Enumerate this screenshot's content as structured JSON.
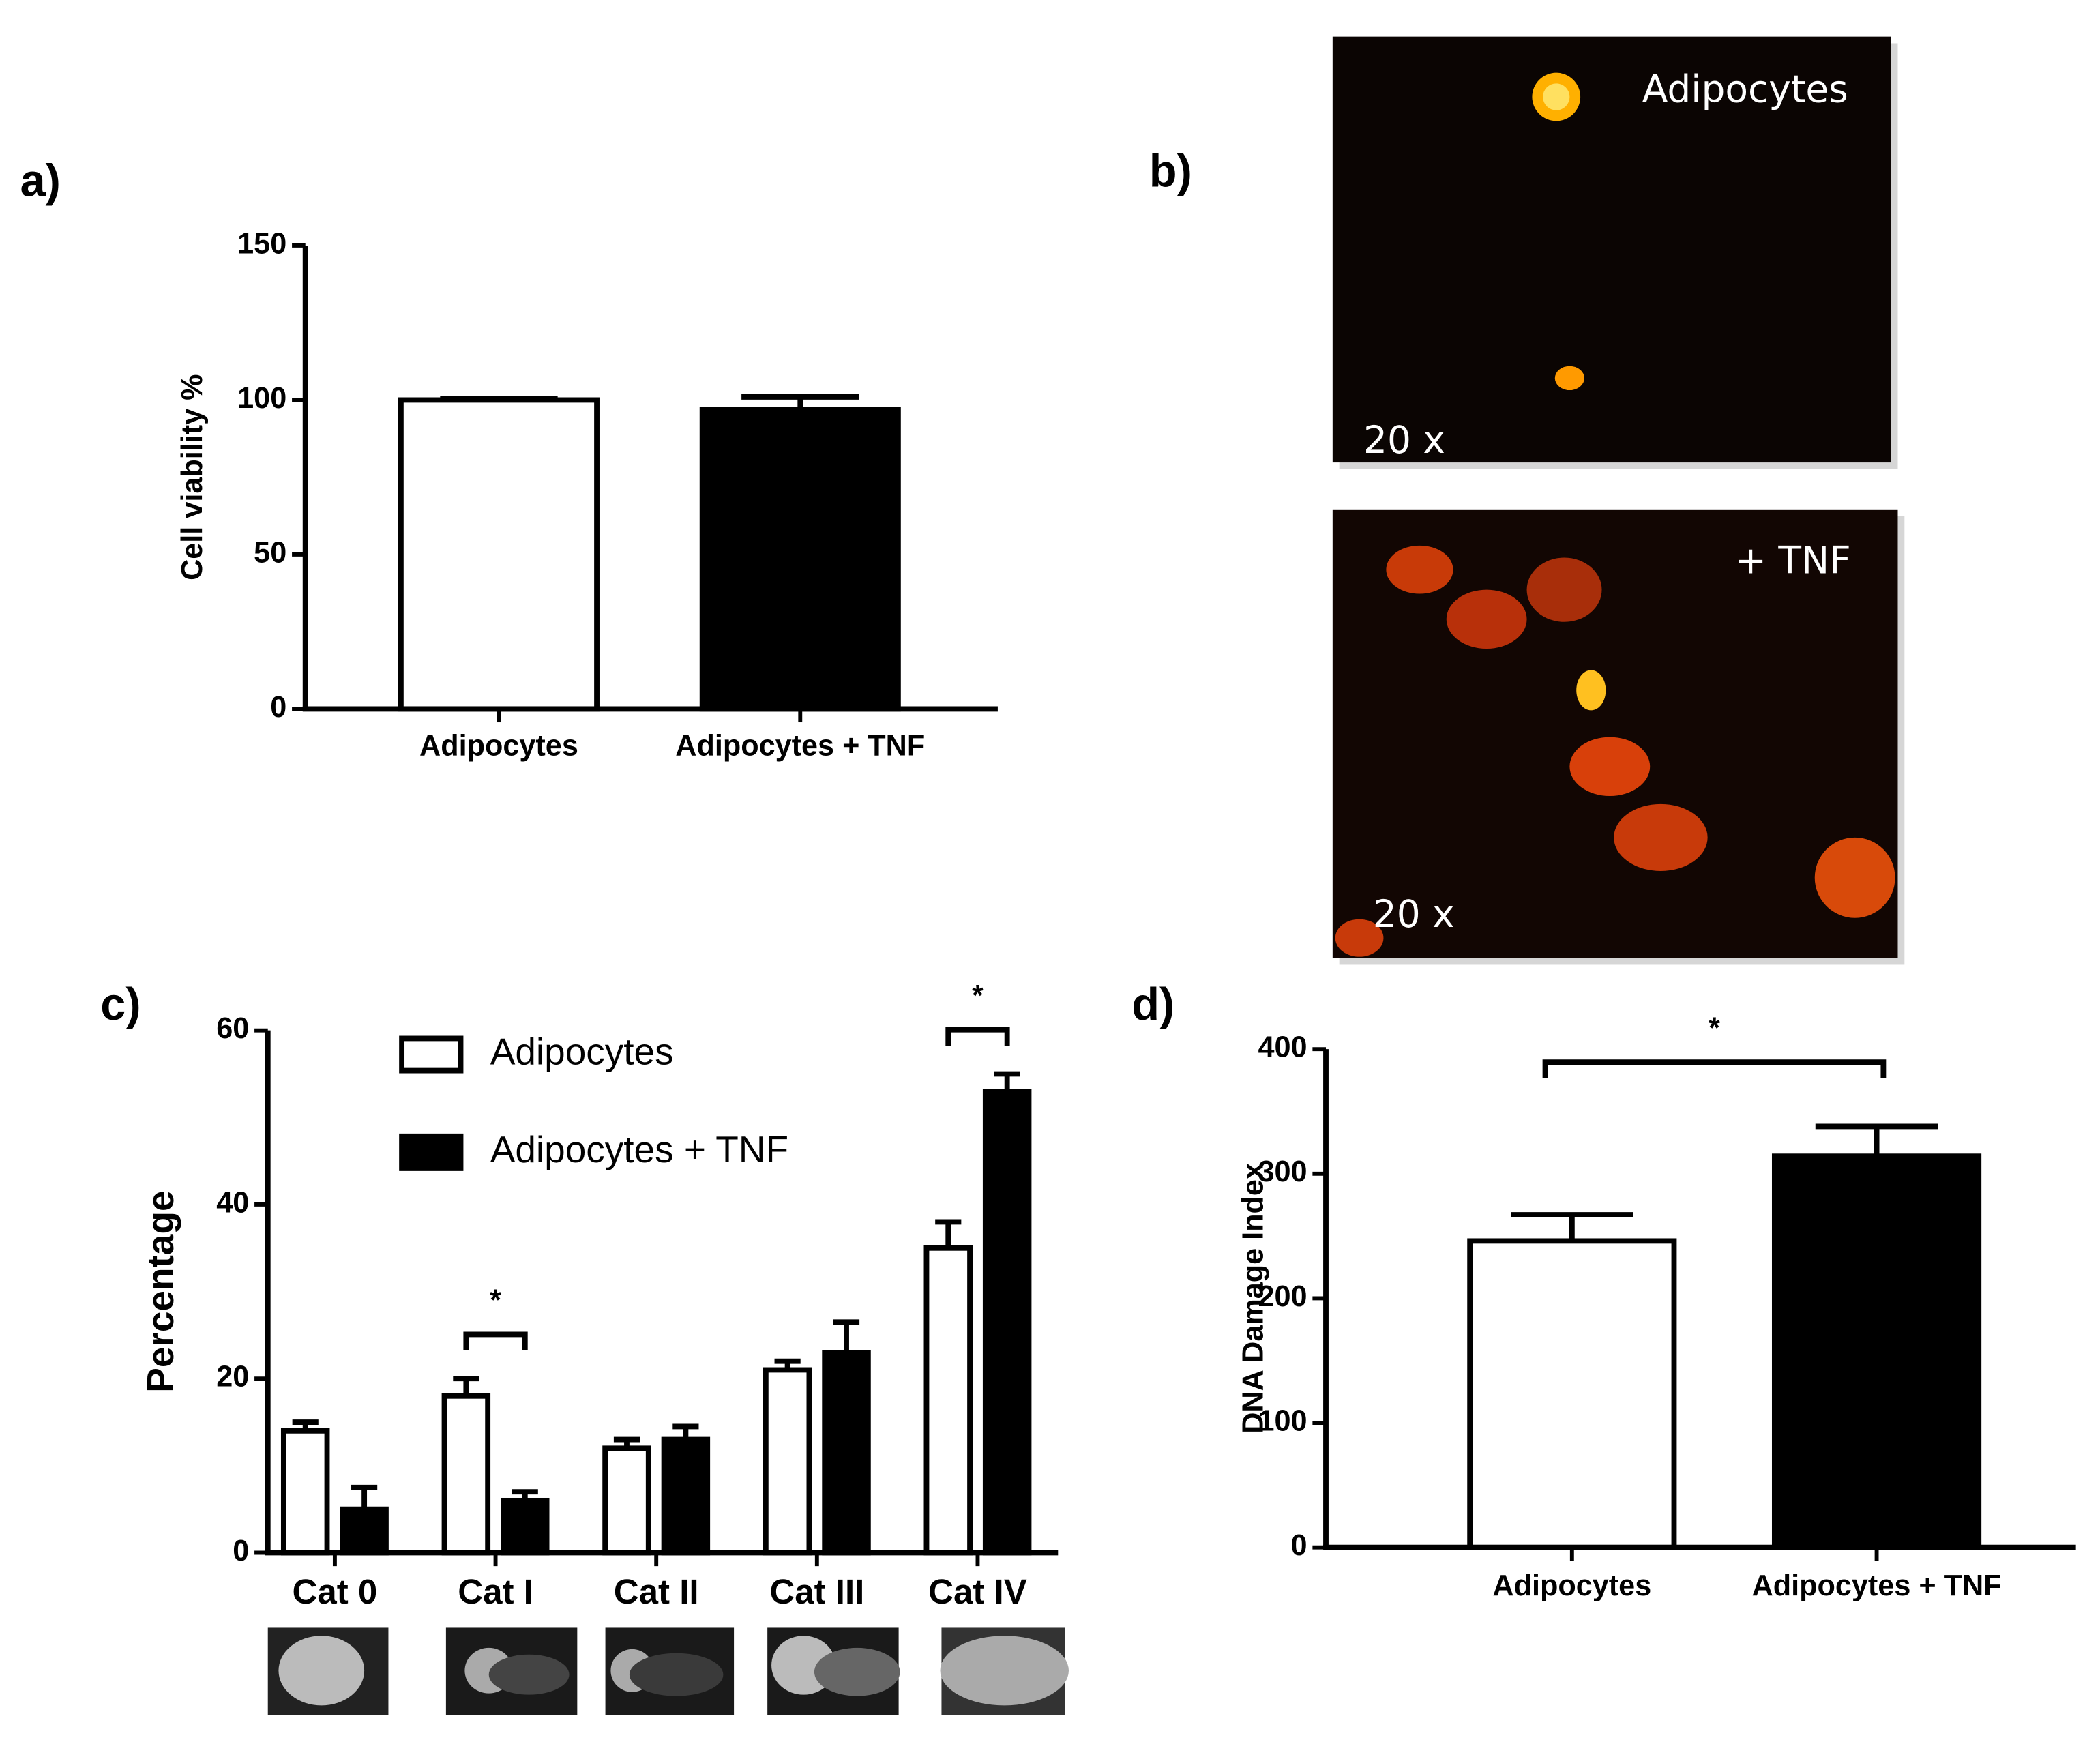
{
  "panels": [
    "a)",
    "b)",
    "c)",
    "d)"
  ],
  "micrographs": [
    {
      "label": "Adipocytes",
      "magnification": "20 x"
    },
    {
      "label": "+ TNF",
      "magnification": "20 x"
    }
  ],
  "chart_data": [
    {
      "type": "bar",
      "y_label": "Cell viability %",
      "categories": [
        "Adipocytes",
        "Adipocytes + TNF"
      ],
      "values": [
        100,
        97
      ],
      "errors": [
        0.5,
        4
      ],
      "colors": [
        "#ffffff",
        "#000000"
      ],
      "ylim": [
        0,
        150
      ],
      "yticks": [
        0,
        50,
        100,
        150
      ]
    },
    {
      "type": "bar",
      "y_label": "Percentage",
      "categories": [
        "Cat 0",
        "Cat I",
        "Cat II",
        "Cat III",
        "Cat IV"
      ],
      "series": [
        {
          "name": "Adipocytes",
          "color": "#ffffff",
          "values": [
            14,
            18,
            12,
            21,
            35
          ],
          "errors": [
            1,
            2,
            1,
            1,
            3
          ]
        },
        {
          "name": "Adipocytes + TNF",
          "color": "#000000",
          "values": [
            5,
            6,
            13,
            23,
            53
          ],
          "errors": [
            2.5,
            1,
            1.5,
            3.5,
            2
          ]
        }
      ],
      "significance": [
        {
          "label": "*",
          "category": "Cat I"
        },
        {
          "label": "*",
          "category": "Cat IV"
        }
      ],
      "ylim": [
        0,
        60
      ],
      "yticks": [
        0,
        20,
        40,
        60
      ],
      "legend": "top-center"
    },
    {
      "type": "bar",
      "y_label": "DNA Damage Index",
      "categories": [
        "Adipocytes",
        "Adipocytes + TNF"
      ],
      "values": [
        246,
        314
      ],
      "errors": [
        21,
        24
      ],
      "colors": [
        "#ffffff",
        "#000000"
      ],
      "significance": [
        {
          "label": "*",
          "between": [
            "Adipocytes",
            "Adipocytes + TNF"
          ]
        }
      ],
      "ylim": [
        0,
        400
      ],
      "yticks": [
        0,
        100,
        200,
        300,
        400
      ]
    }
  ]
}
